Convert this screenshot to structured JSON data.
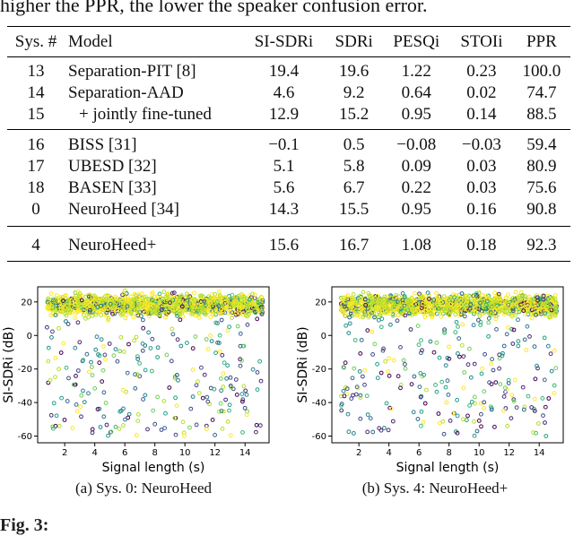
{
  "top_caption": "higher the PPR, the lower the speaker confusion error.",
  "table": {
    "headers": [
      "Sys. #",
      "Model",
      "SI-SDRi",
      "SDRi",
      "PESQi",
      "STOIi",
      "PPR"
    ],
    "groups": [
      [
        [
          "13",
          "Separation-PIT [8]",
          "19.4",
          "19.6",
          "1.22",
          "0.23",
          "100.0"
        ],
        [
          "14",
          "Separation-AAD",
          "4.6",
          "9.2",
          "0.64",
          "0.02",
          "74.7"
        ],
        [
          "15",
          "+ jointly fine-tuned",
          "12.9",
          "15.2",
          "0.95",
          "0.14",
          "88.5"
        ]
      ],
      [
        [
          "16",
          "BISS [31]",
          "−0.1",
          "0.5",
          "−0.08",
          "−0.03",
          "59.4"
        ],
        [
          "17",
          "UBESD [32]",
          "5.1",
          "5.8",
          "0.09",
          "0.03",
          "80.9"
        ],
        [
          "18",
          "BASEN [33]",
          "5.6",
          "6.7",
          "0.22",
          "0.03",
          "75.6"
        ],
        [
          "0",
          "NeuroHeed [34]",
          "14.3",
          "15.5",
          "0.95",
          "0.16",
          "90.8"
        ]
      ],
      [
        [
          "4",
          "NeuroHeed+",
          "15.6",
          "16.7",
          "1.08",
          "0.18",
          "92.3"
        ]
      ]
    ]
  },
  "chart_data": [
    {
      "type": "scatter",
      "xlabel": "Signal length (s)",
      "ylabel": "SI-SDRi (dB)",
      "xlim": [
        0.2,
        15.6
      ],
      "ylim": [
        -64,
        29
      ],
      "xticks": [
        2,
        4,
        6,
        8,
        10,
        12,
        14
      ],
      "yticks": [
        20,
        0,
        -20,
        -40,
        -60
      ],
      "grid": false,
      "cluster": {
        "x_range": [
          0.8,
          15.2
        ],
        "y_center": 18,
        "y_spread": 5
      },
      "outliers": {
        "x_range": [
          0.8,
          15.2
        ],
        "y_range": [
          -60,
          10
        ]
      },
      "colors": [
        "#fde725",
        "#b5de2b",
        "#6ece58",
        "#35b779",
        "#1f9e89",
        "#26828e",
        "#31688e",
        "#3e4989",
        "#482878",
        "#440154"
      ],
      "caption": "(a) Sys. 0: NeuroHeed"
    },
    {
      "type": "scatter",
      "xlabel": "Signal length (s)",
      "ylabel": "SI-SDRi (dB)",
      "xlim": [
        0.2,
        15.6
      ],
      "ylim": [
        -64,
        29
      ],
      "xticks": [
        2,
        4,
        6,
        8,
        10,
        12,
        14
      ],
      "yticks": [
        20,
        0,
        -20,
        -40,
        -60
      ],
      "grid": false,
      "cluster": {
        "x_range": [
          0.8,
          15.2
        ],
        "y_center": 18,
        "y_spread": 5
      },
      "outliers": {
        "x_range": [
          0.8,
          15.2
        ],
        "y_range": [
          -60,
          10
        ]
      },
      "colors": [
        "#fde725",
        "#b5de2b",
        "#6ece58",
        "#35b779",
        "#1f9e89",
        "#26828e",
        "#31688e",
        "#3e4989",
        "#482878",
        "#440154"
      ],
      "caption": "(b) Sys. 4: NeuroHeed+"
    }
  ],
  "bottom_caption": "Fig. 3:"
}
